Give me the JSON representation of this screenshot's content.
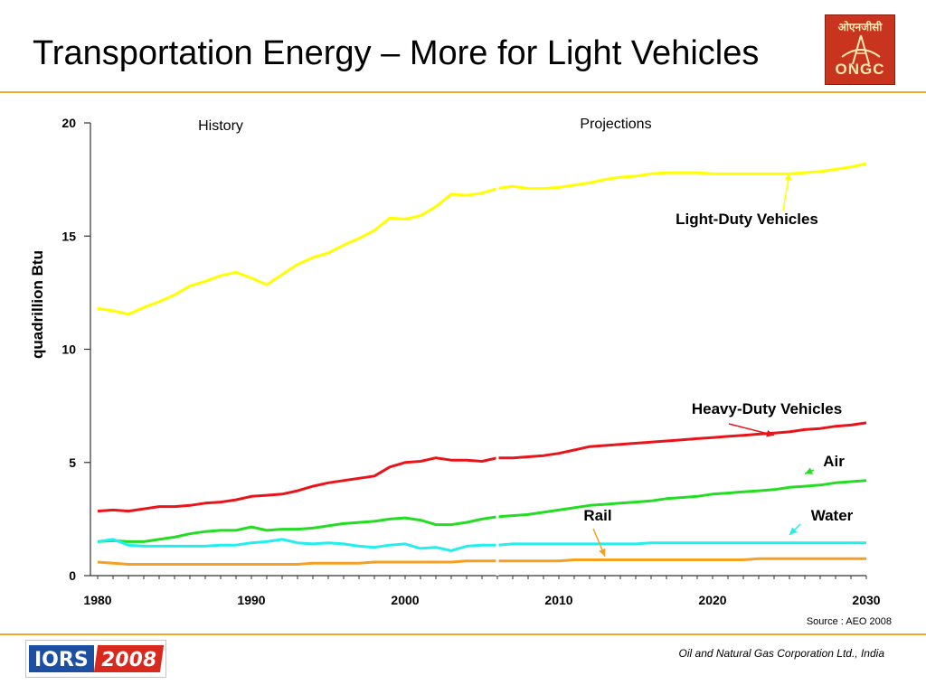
{
  "slide": {
    "title": "Transportation Energy – More for Light Vehicles",
    "source": "Source : AEO 2008",
    "footer": "Oil and Natural Gas Corporation Ltd., India",
    "logo_top_text_devanagari": "ओएनजीसी",
    "logo_top_text_latin": "ONGC",
    "logo_bottom_text": [
      "IORS",
      "2008"
    ],
    "accent_color": "#f0a830"
  },
  "chart_data": {
    "type": "line",
    "title": "",
    "xlabel": "",
    "ylabel": "quadrillion Btu",
    "xlim": [
      1980,
      2030
    ],
    "ylim": [
      0,
      20
    ],
    "xticks": [
      1980,
      1990,
      2000,
      2010,
      2020,
      2030
    ],
    "yticks": [
      0,
      5,
      10,
      15,
      20
    ],
    "grid": false,
    "region_labels": [
      "History",
      "Projections"
    ],
    "split_year": 2006,
    "x": [
      1980,
      1981,
      1982,
      1983,
      1984,
      1985,
      1986,
      1987,
      1988,
      1989,
      1990,
      1991,
      1992,
      1993,
      1994,
      1995,
      1996,
      1997,
      1998,
      1999,
      2000,
      2001,
      2002,
      2003,
      2004,
      2005,
      2006,
      2007,
      2008,
      2009,
      2010,
      2011,
      2012,
      2013,
      2014,
      2015,
      2016,
      2017,
      2018,
      2019,
      2020,
      2021,
      2022,
      2023,
      2024,
      2025,
      2026,
      2027,
      2028,
      2029,
      2030
    ],
    "series": [
      {
        "name": "Light-Duty Vehicles",
        "color": "#ffff00",
        "values": [
          11.8,
          11.7,
          11.55,
          11.85,
          12.1,
          12.4,
          12.8,
          13.0,
          13.25,
          13.4,
          13.15,
          12.85,
          13.3,
          13.75,
          14.05,
          14.25,
          14.6,
          14.9,
          15.25,
          15.8,
          15.75,
          15.9,
          16.3,
          16.85,
          16.8,
          16.9,
          17.1,
          17.2,
          17.1,
          17.1,
          17.15,
          17.25,
          17.35,
          17.5,
          17.6,
          17.65,
          17.75,
          17.8,
          17.8,
          17.8,
          17.75,
          17.75,
          17.75,
          17.75,
          17.75,
          17.75,
          17.8,
          17.85,
          17.95,
          18.05,
          18.2
        ]
      },
      {
        "name": "Heavy-Duty Vehicles",
        "color": "#e8141a",
        "values": [
          2.85,
          2.9,
          2.85,
          2.95,
          3.05,
          3.05,
          3.1,
          3.2,
          3.25,
          3.35,
          3.5,
          3.55,
          3.6,
          3.75,
          3.95,
          4.1,
          4.2,
          4.3,
          4.4,
          4.8,
          5.0,
          5.05,
          5.2,
          5.1,
          5.1,
          5.05,
          5.2,
          5.2,
          5.25,
          5.3,
          5.4,
          5.55,
          5.7,
          5.75,
          5.8,
          5.85,
          5.9,
          5.95,
          6.0,
          6.05,
          6.1,
          6.15,
          6.2,
          6.25,
          6.3,
          6.35,
          6.45,
          6.5,
          6.6,
          6.65,
          6.75
        ]
      },
      {
        "name": "Air",
        "color": "#22dd22",
        "values": [
          1.5,
          1.55,
          1.5,
          1.5,
          1.6,
          1.7,
          1.85,
          1.95,
          2.0,
          2.0,
          2.15,
          2.0,
          2.05,
          2.05,
          2.1,
          2.2,
          2.3,
          2.35,
          2.4,
          2.5,
          2.55,
          2.45,
          2.25,
          2.25,
          2.35,
          2.5,
          2.6,
          2.65,
          2.7,
          2.8,
          2.9,
          3.0,
          3.1,
          3.15,
          3.2,
          3.25,
          3.3,
          3.4,
          3.45,
          3.5,
          3.6,
          3.65,
          3.7,
          3.75,
          3.8,
          3.9,
          3.95,
          4.0,
          4.1,
          4.15,
          4.2
        ]
      },
      {
        "name": "Water",
        "color": "#22eeee",
        "values": [
          1.5,
          1.6,
          1.35,
          1.3,
          1.3,
          1.3,
          1.3,
          1.3,
          1.35,
          1.35,
          1.45,
          1.5,
          1.6,
          1.45,
          1.4,
          1.45,
          1.4,
          1.3,
          1.25,
          1.35,
          1.4,
          1.2,
          1.25,
          1.1,
          1.3,
          1.35,
          1.35,
          1.4,
          1.4,
          1.4,
          1.4,
          1.4,
          1.4,
          1.4,
          1.4,
          1.4,
          1.45,
          1.45,
          1.45,
          1.45,
          1.45,
          1.45,
          1.45,
          1.45,
          1.45,
          1.45,
          1.45,
          1.45,
          1.45,
          1.45,
          1.45
        ]
      },
      {
        "name": "Rail",
        "color": "#f5a020",
        "values": [
          0.6,
          0.55,
          0.5,
          0.5,
          0.5,
          0.5,
          0.5,
          0.5,
          0.5,
          0.5,
          0.5,
          0.5,
          0.5,
          0.5,
          0.55,
          0.55,
          0.55,
          0.55,
          0.6,
          0.6,
          0.6,
          0.6,
          0.6,
          0.6,
          0.65,
          0.65,
          0.65,
          0.65,
          0.65,
          0.65,
          0.65,
          0.7,
          0.7,
          0.7,
          0.7,
          0.7,
          0.7,
          0.7,
          0.7,
          0.7,
          0.7,
          0.7,
          0.7,
          0.75,
          0.75,
          0.75,
          0.75,
          0.75,
          0.75,
          0.75,
          0.75
        ]
      }
    ],
    "annotations": [
      {
        "text": "Light-Duty Vehicles",
        "series": "Light-Duty Vehicles",
        "arrow_to": [
          2025,
          17.8
        ]
      },
      {
        "text": "Heavy-Duty Vehicles",
        "series": "Heavy-Duty Vehicles",
        "arrow_to": [
          2024,
          6.2
        ]
      },
      {
        "text": "Air",
        "series": "Air",
        "arrow_to": [
          2026,
          4.5
        ]
      },
      {
        "text": "Water",
        "series": "Water",
        "arrow_to": [
          2025,
          1.8
        ]
      },
      {
        "text": "Rail",
        "series": "Rail",
        "arrow_to": [
          2013,
          0.85
        ]
      }
    ]
  }
}
